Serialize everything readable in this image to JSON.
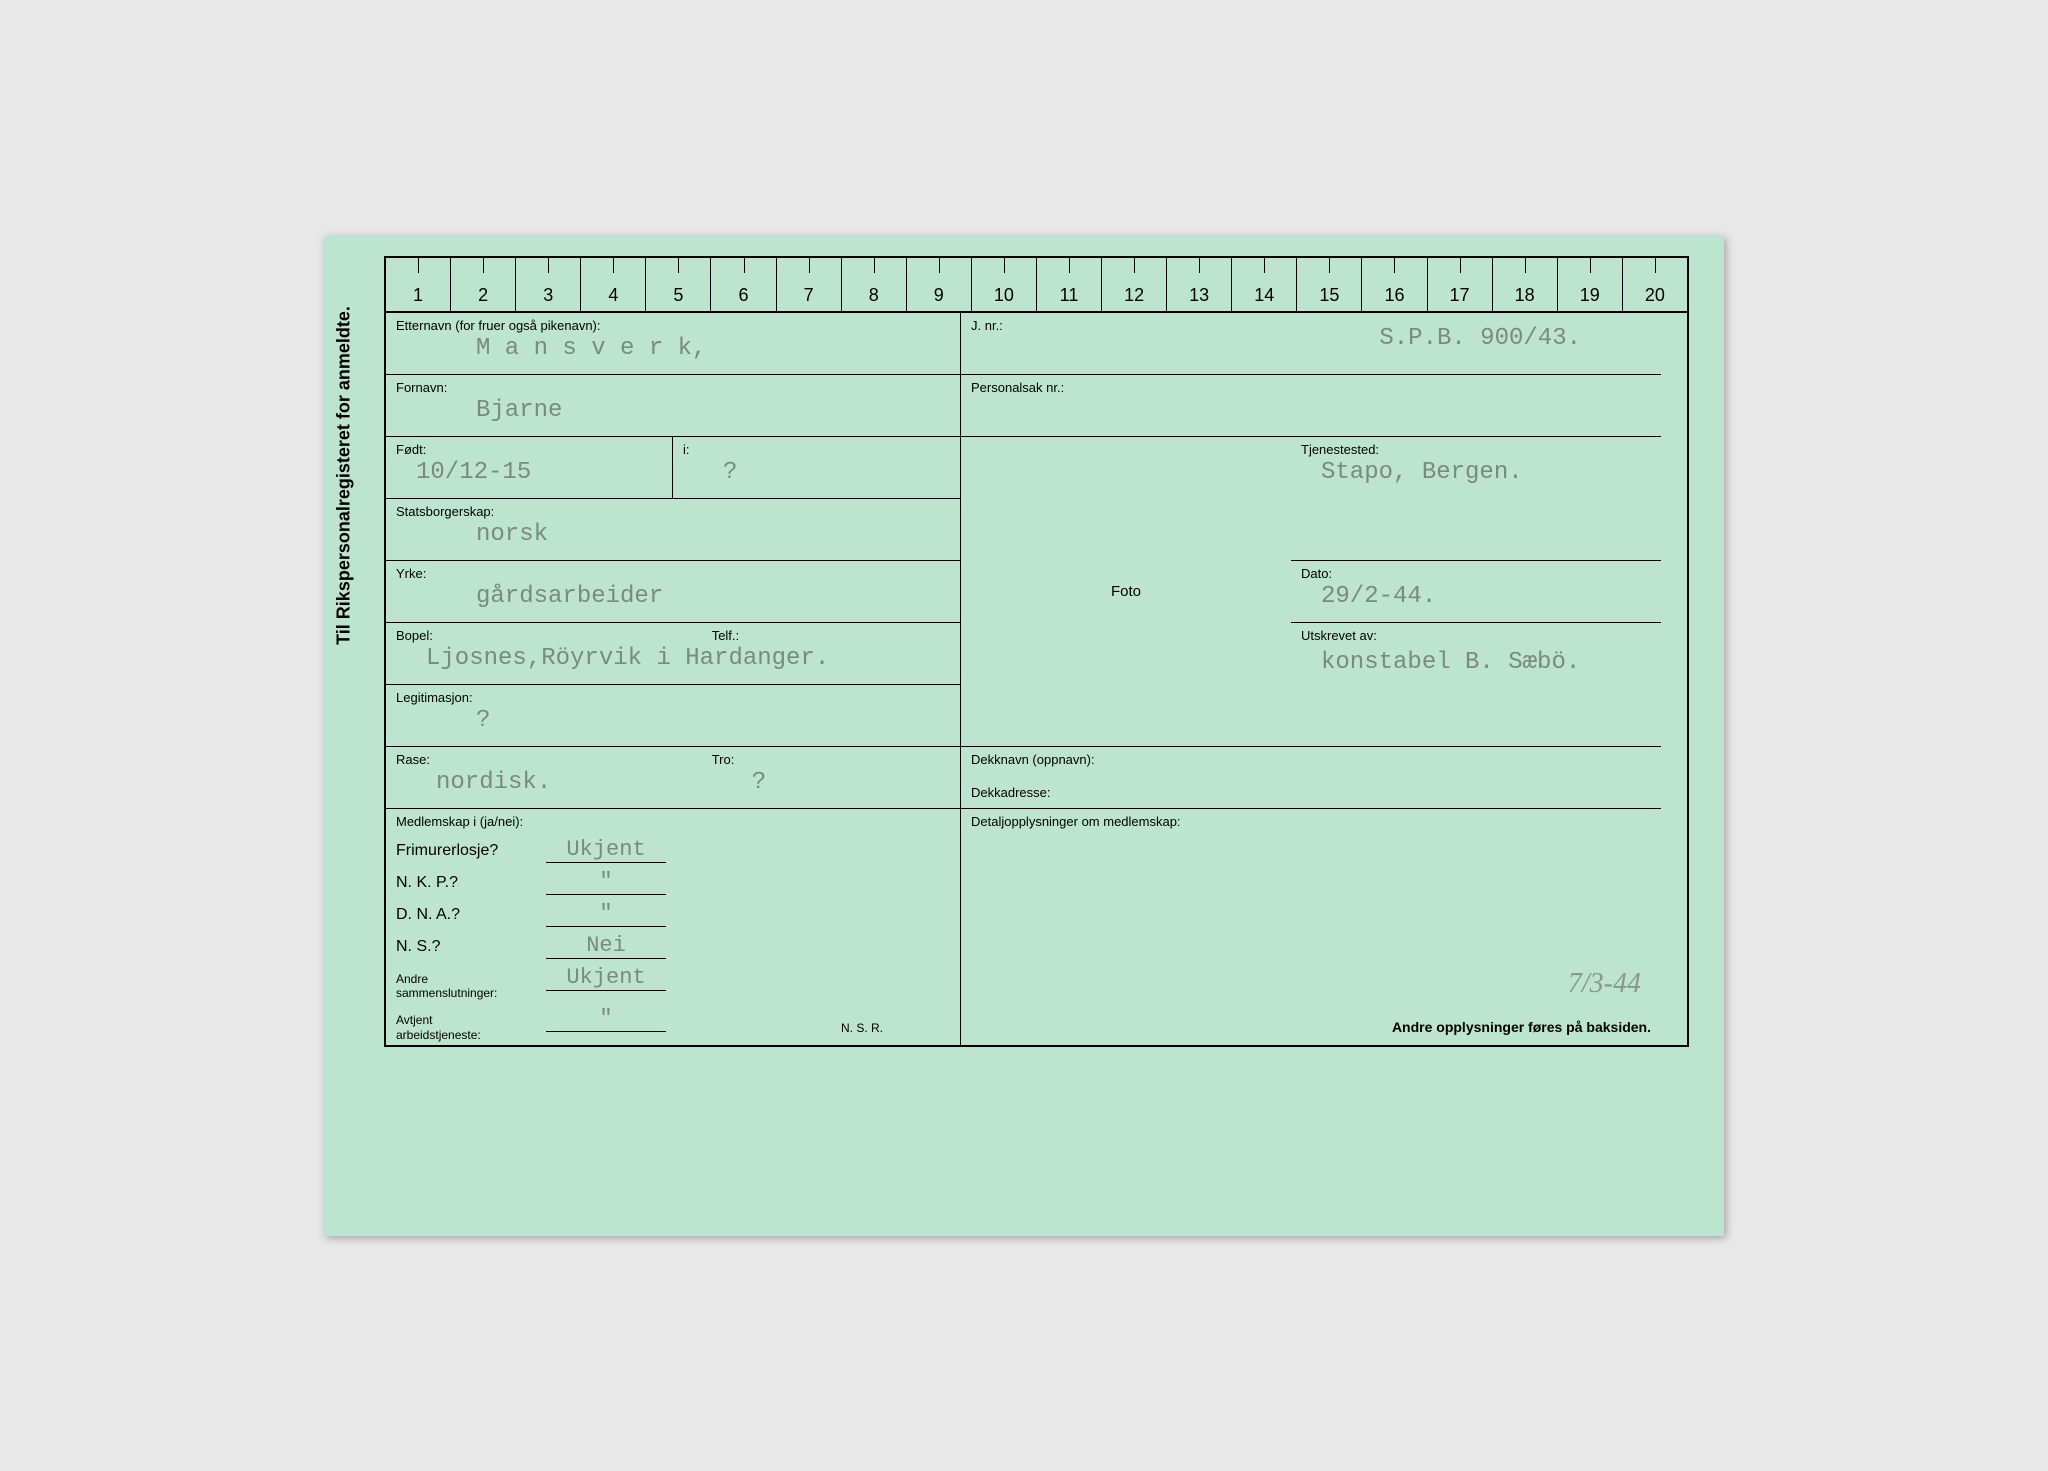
{
  "vertical_title": "Til Rikspersonalregisteret for anmeldte.",
  "ruler": [
    "1",
    "2",
    "3",
    "4",
    "5",
    "6",
    "7",
    "8",
    "9",
    "10",
    "11",
    "12",
    "13",
    "14",
    "15",
    "16",
    "17",
    "18",
    "19",
    "20"
  ],
  "etternavn": {
    "label": "Etternavn (for fruer også pikenavn):",
    "value": "M a n s v e r k,"
  },
  "jnr": {
    "label": "J. nr.:",
    "value": "S.P.B. 900/43."
  },
  "fornavn": {
    "label": "Fornavn:",
    "value": "Bjarne"
  },
  "personalsak": {
    "label": "Personalsak nr.:",
    "value": ""
  },
  "fodt": {
    "label": "Født:",
    "value": "10/12-15"
  },
  "fodt_i": {
    "label": "i:",
    "value": "?"
  },
  "tjenestested": {
    "label": "Tjenestested:",
    "value": "Stapo, Bergen."
  },
  "statsborgerskap": {
    "label": "Statsborgerskap:",
    "value": "norsk"
  },
  "dato": {
    "label": "Dato:",
    "value": "29/2-44."
  },
  "yrke": {
    "label": "Yrke:",
    "value": "gårdsarbeider"
  },
  "utskrevet": {
    "label": "Utskrevet av:",
    "value": "konstabel B. Sæbö."
  },
  "bopel": {
    "label": "Bopel:",
    "telf_label": "Telf.:",
    "value": "Ljosnes,Röyrvik i Hardanger."
  },
  "legitimasjon": {
    "label": "Legitimasjon:",
    "value": "?"
  },
  "rase": {
    "label": "Rase:",
    "value": "nordisk."
  },
  "tro": {
    "label": "Tro:",
    "value": "?"
  },
  "dekknavn": {
    "label": "Dekknavn (oppnavn):",
    "sub_label": "Dekkadresse:"
  },
  "foto_label": "Foto",
  "medlemskap": {
    "header": "Medlemskap i (ja/nei):",
    "rows": [
      {
        "label": "Frimurerlosje?",
        "value": "Ukjent"
      },
      {
        "label": "N. K. P.?",
        "value": "\""
      },
      {
        "label": "D. N. A.?",
        "value": "\""
      },
      {
        "label": "N. S.?",
        "value": "Nei"
      },
      {
        "label_small": "Andre\nsammenslutninger:",
        "value": "Ukjent"
      },
      {
        "label_small": "Avtjent\narbeidstjeneste:",
        "value": "\""
      }
    ]
  },
  "detalj_header": "Detaljopplysninger om medlemskap:",
  "nsr": "N. S. R.",
  "footer": "Andre opplysninger føres på baksiden.",
  "handwritten_date": "7/3-44",
  "colors": {
    "card_bg": "#bde4cf",
    "typed_text": "#7a8a7f",
    "line": "#000000"
  }
}
